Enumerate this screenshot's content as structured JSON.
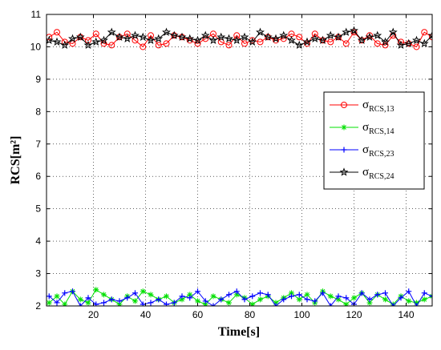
{
  "chart_data": {
    "type": "line",
    "xlabel": "Time[s]",
    "ylabel": "RCS[m²]",
    "xlim": [
      2,
      150
    ],
    "ylim": [
      2,
      11
    ],
    "x_ticks": [
      20,
      40,
      60,
      80,
      100,
      120,
      140
    ],
    "y_ticks": [
      2,
      3,
      4,
      5,
      6,
      7,
      8,
      9,
      10,
      11
    ],
    "grid": true,
    "legend_placement": "right",
    "x": [
      3,
      6,
      9,
      12,
      15,
      18,
      21,
      24,
      27,
      30,
      33,
      36,
      39,
      42,
      45,
      48,
      51,
      54,
      57,
      60,
      63,
      66,
      69,
      72,
      75,
      78,
      81,
      84,
      87,
      90,
      93,
      96,
      99,
      102,
      105,
      108,
      111,
      114,
      117,
      120,
      123,
      126,
      129,
      132,
      135,
      138,
      141,
      144,
      147,
      150
    ],
    "series": [
      {
        "name_base": "σ",
        "name_sub": "RCS,13",
        "color": "#ff0000",
        "marker": "circle",
        "values": [
          10.3,
          10.45,
          10.15,
          10.1,
          10.3,
          10.2,
          10.4,
          10.1,
          10.05,
          10.3,
          10.4,
          10.2,
          10.0,
          10.35,
          10.05,
          10.1,
          10.35,
          10.3,
          10.2,
          10.1,
          10.25,
          10.4,
          10.15,
          10.05,
          10.35,
          10.1,
          10.2,
          10.15,
          10.3,
          10.2,
          10.25,
          10.4,
          10.3,
          10.1,
          10.4,
          10.2,
          10.15,
          10.3,
          10.1,
          10.45,
          10.2,
          10.35,
          10.1,
          10.05,
          10.35,
          10.15,
          10.1,
          10.0,
          10.45,
          10.3
        ]
      },
      {
        "name_base": "σ",
        "name_sub": "RCS,14",
        "color": "#00e000",
        "marker": "asterisk",
        "values": [
          2.1,
          2.3,
          2.05,
          2.45,
          2.2,
          2.1,
          2.5,
          2.35,
          2.2,
          2.05,
          2.3,
          2.15,
          2.45,
          2.35,
          2.2,
          2.3,
          2.1,
          2.2,
          2.35,
          2.15,
          2.05,
          2.3,
          2.2,
          2.1,
          2.35,
          2.25,
          2.05,
          2.2,
          2.3,
          2.1,
          2.25,
          2.4,
          2.2,
          2.35,
          2.1,
          2.45,
          2.3,
          2.2,
          2.05,
          2.25,
          2.4,
          2.1,
          2.35,
          2.2,
          2.05,
          2.3,
          2.15,
          2.1,
          2.2,
          2.3
        ]
      },
      {
        "name_base": "σ",
        "name_sub": "RCS,23",
        "color": "#0000ff",
        "marker": "plus",
        "values": [
          2.3,
          2.1,
          2.4,
          2.45,
          2.0,
          2.25,
          2.05,
          2.1,
          2.2,
          2.15,
          2.25,
          2.4,
          2.05,
          2.1,
          2.2,
          2.05,
          2.1,
          2.3,
          2.25,
          2.45,
          2.15,
          2.0,
          2.2,
          2.35,
          2.45,
          2.2,
          2.3,
          2.4,
          2.35,
          2.0,
          2.2,
          2.3,
          2.35,
          2.2,
          2.15,
          2.4,
          2.0,
          2.3,
          2.25,
          2.05,
          2.4,
          2.2,
          2.35,
          2.4,
          2.0,
          2.25,
          2.45,
          2.0,
          2.4,
          2.3
        ]
      },
      {
        "name_base": "σ",
        "name_sub": "RCS,24",
        "color": "#000000",
        "marker": "star",
        "values": [
          10.2,
          10.15,
          10.05,
          10.25,
          10.3,
          10.05,
          10.15,
          10.2,
          10.45,
          10.3,
          10.25,
          10.35,
          10.3,
          10.2,
          10.25,
          10.45,
          10.35,
          10.3,
          10.25,
          10.2,
          10.35,
          10.2,
          10.3,
          10.25,
          10.2,
          10.3,
          10.15,
          10.45,
          10.3,
          10.25,
          10.35,
          10.2,
          10.05,
          10.15,
          10.25,
          10.2,
          10.35,
          10.3,
          10.45,
          10.5,
          10.2,
          10.3,
          10.35,
          10.15,
          10.45,
          10.05,
          10.1,
          10.2,
          10.1,
          10.35
        ]
      }
    ]
  }
}
